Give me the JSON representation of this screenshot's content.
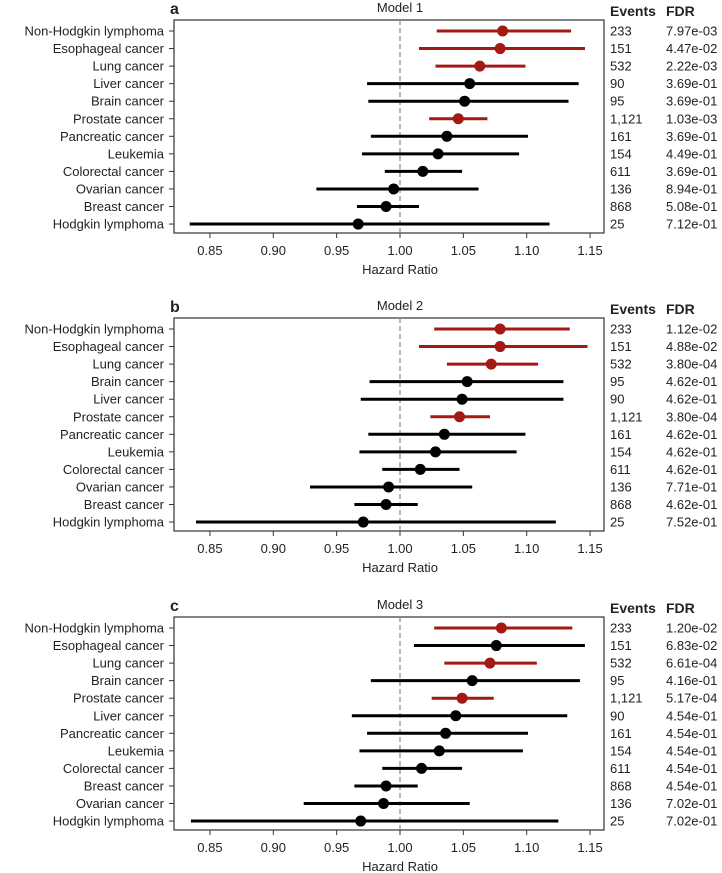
{
  "chart_data": [
    {
      "type": "forest",
      "panel": "a",
      "title": "Model 1",
      "xlabel": "Hazard Ratio",
      "xlim": [
        0.825,
        1.16
      ],
      "xticks": [
        "0.85",
        "0.90",
        "0.95",
        "1.00",
        "1.05",
        "1.10",
        "1.15"
      ],
      "reference_line": 1.0,
      "columns": [
        "Events",
        "FDR"
      ],
      "rows": [
        {
          "name": "Non-Hodgkin lymphoma",
          "hr": 1.081,
          "lo": 1.029,
          "hi": 1.135,
          "events": "233",
          "fdr": "7.97e-03",
          "significant": true
        },
        {
          "name": "Esophageal cancer",
          "hr": 1.079,
          "lo": 1.015,
          "hi": 1.146,
          "events": "151",
          "fdr": "4.47e-02",
          "significant": true
        },
        {
          "name": "Lung cancer",
          "hr": 1.063,
          "lo": 1.028,
          "hi": 1.099,
          "events": "532",
          "fdr": "2.22e-03",
          "significant": true
        },
        {
          "name": "Liver cancer",
          "hr": 1.055,
          "lo": 0.974,
          "hi": 1.141,
          "events": "90",
          "fdr": "3.69e-01",
          "significant": false
        },
        {
          "name": "Brain cancer",
          "hr": 1.051,
          "lo": 0.975,
          "hi": 1.133,
          "events": "95",
          "fdr": "3.69e-01",
          "significant": false
        },
        {
          "name": "Prostate cancer",
          "hr": 1.046,
          "lo": 1.023,
          "hi": 1.069,
          "events": "1,121",
          "fdr": "1.03e-03",
          "significant": true
        },
        {
          "name": "Pancreatic cancer",
          "hr": 1.037,
          "lo": 0.977,
          "hi": 1.101,
          "events": "161",
          "fdr": "3.69e-01",
          "significant": false
        },
        {
          "name": "Leukemia",
          "hr": 1.03,
          "lo": 0.97,
          "hi": 1.094,
          "events": "154",
          "fdr": "4.49e-01",
          "significant": false
        },
        {
          "name": "Colorectal cancer",
          "hr": 1.018,
          "lo": 0.988,
          "hi": 1.049,
          "events": "611",
          "fdr": "3.69e-01",
          "significant": false
        },
        {
          "name": "Ovarian cancer",
          "hr": 0.995,
          "lo": 0.934,
          "hi": 1.062,
          "events": "136",
          "fdr": "8.94e-01",
          "significant": false
        },
        {
          "name": "Breast cancer",
          "hr": 0.989,
          "lo": 0.966,
          "hi": 1.015,
          "events": "868",
          "fdr": "5.08e-01",
          "significant": false
        },
        {
          "name": "Hodgkin lymphoma",
          "hr": 0.967,
          "lo": 0.834,
          "hi": 1.118,
          "events": "25",
          "fdr": "7.12e-01",
          "significant": false
        }
      ]
    },
    {
      "type": "forest",
      "panel": "b",
      "title": "Model 2",
      "xlabel": "Hazard Ratio",
      "xlim": [
        0.825,
        1.16
      ],
      "xticks": [
        "0.85",
        "0.90",
        "0.95",
        "1.00",
        "1.05",
        "1.10",
        "1.15"
      ],
      "reference_line": 1.0,
      "columns": [
        "Events",
        "FDR"
      ],
      "rows": [
        {
          "name": "Non-Hodgkin lymphoma",
          "hr": 1.079,
          "lo": 1.027,
          "hi": 1.134,
          "events": "233",
          "fdr": "1.12e-02",
          "significant": true
        },
        {
          "name": "Esophageal cancer",
          "hr": 1.079,
          "lo": 1.015,
          "hi": 1.148,
          "events": "151",
          "fdr": "4.88e-02",
          "significant": true
        },
        {
          "name": "Lung cancer",
          "hr": 1.072,
          "lo": 1.037,
          "hi": 1.109,
          "events": "532",
          "fdr": "3.80e-04",
          "significant": true
        },
        {
          "name": "Brain cancer",
          "hr": 1.053,
          "lo": 0.976,
          "hi": 1.129,
          "events": "95",
          "fdr": "4.62e-01",
          "significant": false
        },
        {
          "name": "Liver cancer",
          "hr": 1.049,
          "lo": 0.969,
          "hi": 1.129,
          "events": "90",
          "fdr": "4.62e-01",
          "significant": false
        },
        {
          "name": "Prostate cancer",
          "hr": 1.047,
          "lo": 1.024,
          "hi": 1.071,
          "events": "1,121",
          "fdr": "3.80e-04",
          "significant": true
        },
        {
          "name": "Pancreatic cancer",
          "hr": 1.035,
          "lo": 0.975,
          "hi": 1.099,
          "events": "161",
          "fdr": "4.62e-01",
          "significant": false
        },
        {
          "name": "Leukemia",
          "hr": 1.028,
          "lo": 0.968,
          "hi": 1.092,
          "events": "154",
          "fdr": "4.62e-01",
          "significant": false
        },
        {
          "name": "Colorectal cancer",
          "hr": 1.016,
          "lo": 0.986,
          "hi": 1.047,
          "events": "611",
          "fdr": "4.62e-01",
          "significant": false
        },
        {
          "name": "Ovarian cancer",
          "hr": 0.991,
          "lo": 0.929,
          "hi": 1.057,
          "events": "136",
          "fdr": "7.71e-01",
          "significant": false
        },
        {
          "name": "Breast cancer",
          "hr": 0.989,
          "lo": 0.964,
          "hi": 1.014,
          "events": "868",
          "fdr": "4.62e-01",
          "significant": false
        },
        {
          "name": "Hodgkin lymphoma",
          "hr": 0.971,
          "lo": 0.839,
          "hi": 1.123,
          "events": "25",
          "fdr": "7.52e-01",
          "significant": false
        }
      ]
    },
    {
      "type": "forest",
      "panel": "c",
      "title": "Model 3",
      "xlabel": "Hazard Ratio",
      "xlim": [
        0.825,
        1.16
      ],
      "xticks": [
        "0.85",
        "0.90",
        "0.95",
        "1.00",
        "1.05",
        "1.10",
        "1.15"
      ],
      "reference_line": 1.0,
      "columns": [
        "Events",
        "FDR"
      ],
      "rows": [
        {
          "name": "Non-Hodgkin lymphoma",
          "hr": 1.08,
          "lo": 1.027,
          "hi": 1.136,
          "events": "233",
          "fdr": "1.20e-02",
          "significant": true
        },
        {
          "name": "Esophageal cancer",
          "hr": 1.076,
          "lo": 1.011,
          "hi": 1.146,
          "events": "151",
          "fdr": "6.83e-02",
          "significant": false
        },
        {
          "name": "Lung cancer",
          "hr": 1.071,
          "lo": 1.035,
          "hi": 1.108,
          "events": "532",
          "fdr": "6.61e-04",
          "significant": true
        },
        {
          "name": "Brain cancer",
          "hr": 1.057,
          "lo": 0.977,
          "hi": 1.142,
          "events": "95",
          "fdr": "4.16e-01",
          "significant": false
        },
        {
          "name": "Prostate cancer",
          "hr": 1.049,
          "lo": 1.025,
          "hi": 1.074,
          "events": "1,121",
          "fdr": "5.17e-04",
          "significant": true
        },
        {
          "name": "Liver cancer",
          "hr": 1.044,
          "lo": 0.962,
          "hi": 1.132,
          "events": "90",
          "fdr": "4.54e-01",
          "significant": false
        },
        {
          "name": "Pancreatic cancer",
          "hr": 1.036,
          "lo": 0.974,
          "hi": 1.101,
          "events": "161",
          "fdr": "4.54e-01",
          "significant": false
        },
        {
          "name": "Leukemia",
          "hr": 1.031,
          "lo": 0.968,
          "hi": 1.097,
          "events": "154",
          "fdr": "4.54e-01",
          "significant": false
        },
        {
          "name": "Colorectal cancer",
          "hr": 1.017,
          "lo": 0.986,
          "hi": 1.049,
          "events": "611",
          "fdr": "4.54e-01",
          "significant": false
        },
        {
          "name": "Breast cancer",
          "hr": 0.989,
          "lo": 0.964,
          "hi": 1.014,
          "events": "868",
          "fdr": "4.54e-01",
          "significant": false
        },
        {
          "name": "Ovarian cancer",
          "hr": 0.987,
          "lo": 0.924,
          "hi": 1.055,
          "events": "136",
          "fdr": "7.02e-01",
          "significant": false
        },
        {
          "name": "Hodgkin lymphoma",
          "hr": 0.969,
          "lo": 0.835,
          "hi": 1.125,
          "events": "25",
          "fdr": "7.02e-01",
          "significant": false
        }
      ]
    }
  ],
  "colors": {
    "significant": "#a31a14",
    "nonsignificant": "#000000",
    "reference": "#888888"
  }
}
